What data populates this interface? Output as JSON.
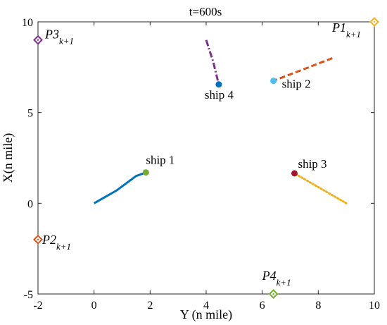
{
  "chart_data": {
    "type": "line",
    "title": "t=600s",
    "xlabel": "Y (n mile)",
    "ylabel": "X(n mile)",
    "xlim": [
      -2,
      10
    ],
    "ylim": [
      -5,
      10
    ],
    "xticks": [
      "-2",
      "0",
      "2",
      "4",
      "6",
      "8",
      "10"
    ],
    "yticks": [
      "-5",
      "0",
      "5",
      "10"
    ],
    "grid": false,
    "series": [
      {
        "name": "ship 1",
        "color": "#0072BD",
        "style": "solid",
        "points": [
          [
            0,
            0
          ],
          [
            0.8,
            0.7
          ],
          [
            1.5,
            1.5
          ],
          [
            1.85,
            1.7
          ]
        ],
        "end": [
          1.85,
          1.7
        ],
        "end_color": "#77AC30"
      },
      {
        "name": "ship 2",
        "color": "#D95319",
        "style": "dashed",
        "points": [
          [
            8.5,
            8.0
          ],
          [
            7.5,
            7.4
          ],
          [
            6.4,
            6.75
          ]
        ],
        "end": [
          6.4,
          6.75
        ],
        "end_color": "#4DBEEE"
      },
      {
        "name": "ship 3",
        "color": "#EDB120",
        "style": "dotted",
        "points": [
          [
            9.0,
            0.0
          ],
          [
            8.1,
            0.8
          ],
          [
            7.15,
            1.65
          ]
        ],
        "end": [
          7.15,
          1.65
        ],
        "end_color": "#A2142F"
      },
      {
        "name": "ship 4",
        "color": "#7E2F8E",
        "style": "dashdot",
        "points": [
          [
            4.0,
            9.0
          ],
          [
            4.25,
            7.8
          ],
          [
            4.45,
            6.55
          ]
        ],
        "end": [
          4.45,
          6.55
        ],
        "end_color": "#0072BD"
      }
    ],
    "waypoints": [
      {
        "main": "P1",
        "sub": "k+1",
        "x": 10,
        "y": 10,
        "color": "#EDB120"
      },
      {
        "main": "P2",
        "sub": "k+1",
        "x": -2,
        "y": -2,
        "color": "#D95319"
      },
      {
        "main": "P3",
        "sub": "k+1",
        "x": -2,
        "y": 9,
        "color": "#7E2F8E"
      },
      {
        "main": "P4",
        "sub": "k+1",
        "x": 6.4,
        "y": -5,
        "color": "#77AC30"
      }
    ]
  }
}
